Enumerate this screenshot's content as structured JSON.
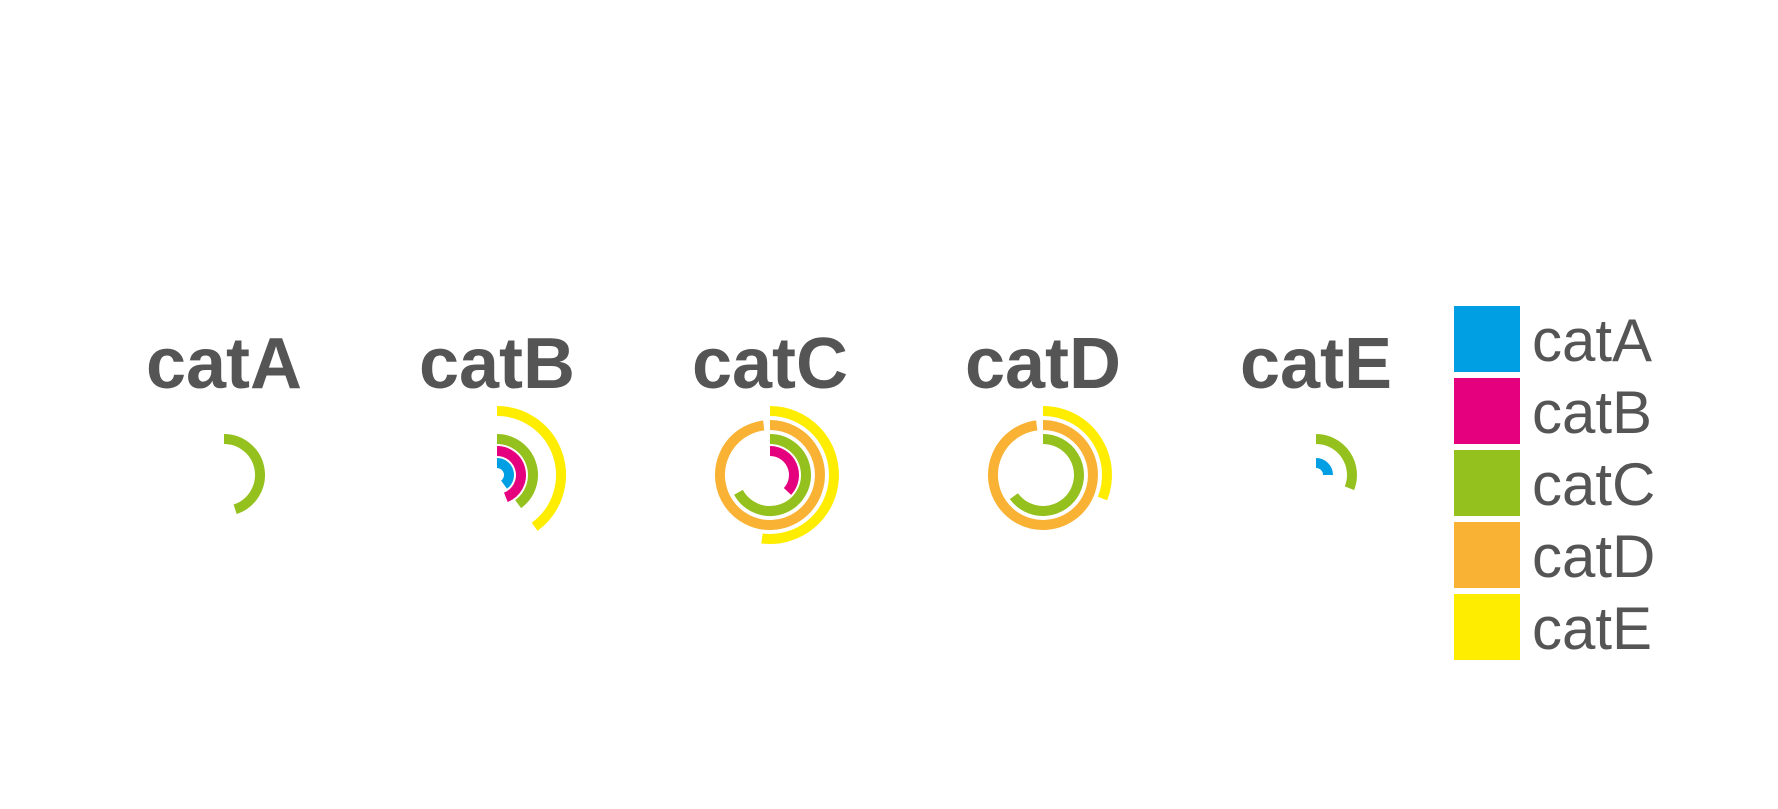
{
  "chart_data": {
    "type": "radial-bar",
    "facet_by": "category",
    "ring_by": "category",
    "max_fraction": 1.0,
    "facets": [
      {
        "title": "catA",
        "rings": [
          {
            "category": "catC",
            "fraction": 0.45
          }
        ]
      },
      {
        "title": "catB",
        "rings": [
          {
            "category": "catA",
            "fraction": 0.4
          },
          {
            "category": "catB",
            "fraction": 0.44
          },
          {
            "category": "catC",
            "fraction": 0.4
          },
          {
            "category": "catE",
            "fraction": 0.4
          }
        ]
      },
      {
        "title": "catC",
        "rings": [
          {
            "category": "catB",
            "fraction": 0.37
          },
          {
            "category": "catC",
            "fraction": 0.67
          },
          {
            "category": "catD",
            "fraction": 0.98
          },
          {
            "category": "catE",
            "fraction": 0.52
          }
        ]
      },
      {
        "title": "catD",
        "rings": [
          {
            "category": "catC",
            "fraction": 0.65
          },
          {
            "category": "catD",
            "fraction": 0.98
          },
          {
            "category": "catE",
            "fraction": 0.31
          }
        ]
      },
      {
        "title": "catE",
        "rings": [
          {
            "category": "catA",
            "fraction": 0.25
          },
          {
            "category": "catC",
            "fraction": 0.31
          }
        ]
      }
    ],
    "legend": {
      "placement": "right",
      "entries": [
        {
          "label": "catA",
          "color": "#009fe3"
        },
        {
          "label": "catB",
          "color": "#e5007e"
        },
        {
          "label": "catC",
          "color": "#95c11f"
        },
        {
          "label": "catD",
          "color": "#f9b233"
        },
        {
          "label": "catE",
          "color": "#ffed00"
        }
      ]
    },
    "grid": false,
    "colors": {
      "catA": "#009fe3",
      "catB": "#e5007e",
      "catC": "#95c11f",
      "catD": "#f9b233",
      "catE": "#ffed00",
      "text": "#555555",
      "background": "#ffffff"
    }
  }
}
